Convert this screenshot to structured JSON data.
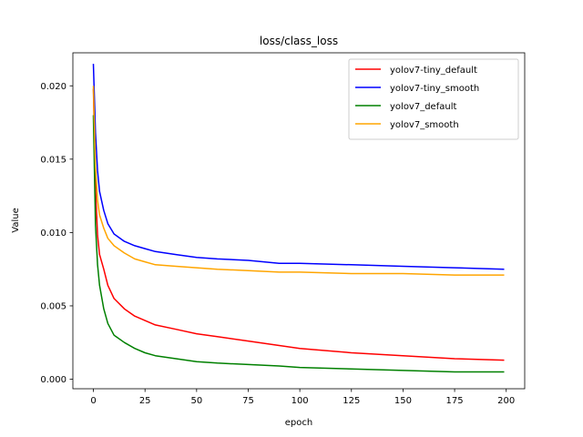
{
  "chart_data": {
    "type": "line",
    "title": "loss/class_loss",
    "xlabel": "epoch",
    "ylabel": "Value",
    "xlim": [
      -9.95,
      208.95
    ],
    "ylim": [
      -0.00065,
      0.02225
    ],
    "xticks": [
      0,
      25,
      50,
      75,
      100,
      125,
      150,
      175,
      200
    ],
    "xtick_labels": [
      "0",
      "25",
      "50",
      "75",
      "100",
      "125",
      "150",
      "175",
      "200"
    ],
    "yticks": [
      0.0,
      0.005,
      0.01,
      0.015,
      0.02
    ],
    "ytick_labels": [
      "0.000",
      "0.005",
      "0.010",
      "0.015",
      "0.020"
    ],
    "grid": false,
    "legend_position": "top-right",
    "series": [
      {
        "name": "yolov7-tiny_default",
        "color": "#ff0000",
        "x": [
          0,
          1,
          2,
          3,
          5,
          7,
          10,
          15,
          20,
          25,
          30,
          40,
          50,
          60,
          75,
          90,
          100,
          125,
          150,
          175,
          199
        ],
        "y": [
          0.0198,
          0.013,
          0.0098,
          0.0085,
          0.0075,
          0.0064,
          0.0055,
          0.0048,
          0.0043,
          0.004,
          0.0037,
          0.0034,
          0.0031,
          0.0029,
          0.0026,
          0.0023,
          0.0021,
          0.0018,
          0.0016,
          0.0014,
          0.0013
        ]
      },
      {
        "name": "yolov7-tiny_smooth",
        "color": "#0000ff",
        "x": [
          0,
          1,
          2,
          3,
          5,
          7,
          10,
          15,
          20,
          25,
          30,
          40,
          50,
          60,
          75,
          90,
          100,
          125,
          150,
          175,
          199
        ],
        "y": [
          0.0215,
          0.0168,
          0.0142,
          0.0128,
          0.0115,
          0.0106,
          0.0099,
          0.0094,
          0.0091,
          0.0089,
          0.0087,
          0.0085,
          0.0083,
          0.0082,
          0.0081,
          0.0079,
          0.0079,
          0.0078,
          0.0077,
          0.0076,
          0.0075
        ]
      },
      {
        "name": "yolov7_default",
        "color": "#008000",
        "x": [
          0,
          1,
          2,
          3,
          5,
          7,
          10,
          15,
          20,
          25,
          30,
          40,
          50,
          60,
          75,
          90,
          100,
          125,
          150,
          175,
          199
        ],
        "y": [
          0.018,
          0.0105,
          0.0078,
          0.0064,
          0.0048,
          0.0038,
          0.003,
          0.0025,
          0.0021,
          0.0018,
          0.0016,
          0.0014,
          0.0012,
          0.0011,
          0.001,
          0.0009,
          0.0008,
          0.0007,
          0.0006,
          0.0005,
          0.0005
        ]
      },
      {
        "name": "yolov7_smooth",
        "color": "#ffa500",
        "x": [
          0,
          1,
          2,
          3,
          5,
          7,
          10,
          15,
          20,
          25,
          30,
          40,
          50,
          60,
          75,
          90,
          100,
          125,
          150,
          175,
          199
        ],
        "y": [
          0.02,
          0.0145,
          0.0122,
          0.0112,
          0.0103,
          0.0096,
          0.0091,
          0.0086,
          0.0082,
          0.008,
          0.0078,
          0.0077,
          0.0076,
          0.0075,
          0.0074,
          0.0073,
          0.0073,
          0.0072,
          0.0072,
          0.0071,
          0.0071
        ]
      }
    ]
  }
}
